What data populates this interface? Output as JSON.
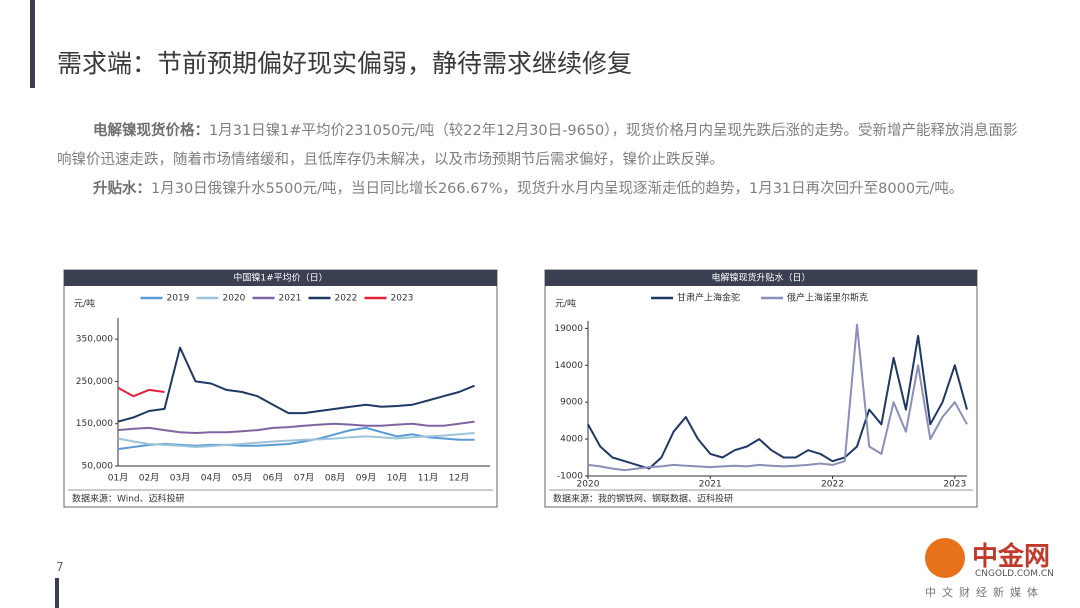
{
  "header": {
    "title": "需求端：节前预期偏好现实偏弱，静待需求继续修复"
  },
  "paragraphs": [
    {
      "label": "电解镍现货价格：",
      "text": "1月31日镍1#平均价231050元/吨（较22年12月30日-9650），现货价格月内呈现先跌后涨的走势。受新增产能释放消息面影响镍价迅速走跌，随着市场情绪缓和，且低库存仍未解决，以及市场预期节后需求偏好，镍价止跌反弹。"
    },
    {
      "label": "升贴水：",
      "text": "1月30日俄镍升水5500元/吨，当日同比增长266.67%，现货升水月内呈现逐渐走低的趋势，1月31日再次回升至8000元/吨。"
    }
  ],
  "chart_data": [
    {
      "type": "line",
      "title": "中国镍1#平均价（日）",
      "y_label": "元/吨",
      "source": "数据来源：Wind、迈科投研",
      "legend": "top",
      "categories": [
        "01月",
        null,
        "02月",
        null,
        "03月",
        null,
        "04月",
        null,
        "05月",
        null,
        "06月",
        null,
        "07月",
        null,
        "08月",
        null,
        "09月",
        null,
        "10月",
        null,
        "11月",
        null,
        "12月",
        null
      ],
      "ylim": [
        50000,
        400000
      ],
      "yticks": [
        {
          "value": 50000,
          "label": "50,000"
        },
        {
          "value": 150000,
          "label": "150,000"
        },
        {
          "value": 250000,
          "label": "250,000"
        },
        {
          "value": 350000,
          "label": "350,000"
        }
      ],
      "series": [
        {
          "name": "2019",
          "color": "#5b9bd5",
          "values": [
            90000,
            95000,
            100000,
            102000,
            100000,
            98000,
            100000,
            100000,
            98000,
            98000,
            100000,
            102000,
            108000,
            115000,
            125000,
            135000,
            140000,
            130000,
            120000,
            125000,
            118000,
            115000,
            112000,
            112000
          ]
        },
        {
          "name": "2020",
          "color": "#9dc3d8",
          "values": [
            115000,
            108000,
            102000,
            100000,
            98000,
            95000,
            97000,
            100000,
            102000,
            105000,
            108000,
            110000,
            112000,
            113000,
            115000,
            118000,
            120000,
            118000,
            115000,
            118000,
            120000,
            122000,
            125000,
            128000
          ]
        },
        {
          "name": "2021",
          "color": "#8064a2",
          "values": [
            135000,
            138000,
            140000,
            135000,
            130000,
            128000,
            130000,
            130000,
            132000,
            135000,
            140000,
            142000,
            145000,
            148000,
            150000,
            148000,
            145000,
            145000,
            148000,
            150000,
            145000,
            145000,
            150000,
            155000
          ]
        },
        {
          "name": "2022",
          "color": "#1f3864",
          "values": [
            155000,
            165000,
            180000,
            185000,
            330000,
            250000,
            245000,
            230000,
            225000,
            215000,
            195000,
            175000,
            175000,
            180000,
            185000,
            190000,
            195000,
            190000,
            192000,
            195000,
            205000,
            215000,
            225000,
            240000
          ]
        },
        {
          "name": "2023",
          "color": "#e0223a",
          "values": [
            235000,
            215000,
            230000,
            225000,
            null,
            null,
            null,
            null,
            null,
            null,
            null,
            null,
            null,
            null,
            null,
            null,
            null,
            null,
            null,
            null,
            null,
            null,
            null,
            null
          ]
        }
      ]
    },
    {
      "type": "line",
      "title": "电解镍现货升贴水（日）",
      "y_label": "元/吨",
      "source": "数据来源：我的钢铁网、钢联数据、迈科投研",
      "legend": "top",
      "x": [
        2020.0,
        2020.1,
        2020.2,
        2020.3,
        2020.4,
        2020.5,
        2020.6,
        2020.7,
        2020.8,
        2020.9,
        2021.0,
        2021.1,
        2021.2,
        2021.3,
        2021.4,
        2021.5,
        2021.6,
        2021.7,
        2021.8,
        2021.9,
        2022.0,
        2022.1,
        2022.2,
        2022.3,
        2022.4,
        2022.5,
        2022.6,
        2022.7,
        2022.8,
        2022.9,
        2023.0,
        2023.1
      ],
      "xlim": [
        2020,
        2023.1
      ],
      "xticks": [
        2020,
        2021,
        2022,
        2023
      ],
      "ylim": [
        -1000,
        20000
      ],
      "yticks": [
        -1000,
        4000,
        9000,
        14000,
        19000
      ],
      "series": [
        {
          "name": "甘肃产上海金驼",
          "color": "#1f3864",
          "values": [
            6000,
            3000,
            1500,
            1000,
            500,
            0,
            1500,
            5000,
            7000,
            4000,
            2000,
            1500,
            2500,
            3000,
            4000,
            2500,
            1500,
            1500,
            2500,
            2000,
            1000,
            1500,
            3000,
            8000,
            6000,
            15000,
            8000,
            18000,
            6000,
            9000,
            14000,
            8000
          ]
        },
        {
          "name": "俄产上海诺里尔斯克",
          "color": "#8b8fb8",
          "values": [
            500,
            300,
            0,
            -200,
            0,
            200,
            300,
            500,
            400,
            300,
            200,
            300,
            400,
            300,
            500,
            400,
            300,
            400,
            500,
            700,
            500,
            1000,
            19500,
            3000,
            2000,
            9000,
            5000,
            14000,
            4000,
            7000,
            9000,
            6000
          ]
        }
      ]
    }
  ],
  "page_number": "7",
  "watermark": {
    "name": "中金网",
    "site": "CNGOLD.COM.CN",
    "slogan": "中文财经新媒体"
  }
}
